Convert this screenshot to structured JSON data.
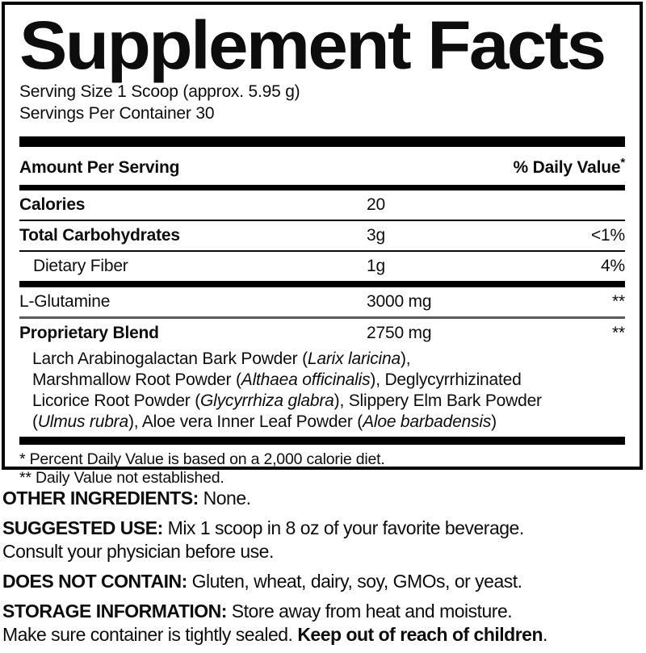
{
  "colors": {
    "ink": "#0d0d0d",
    "paper": "#ffffff",
    "divider_soft": "#5a5a5a"
  },
  "panel": {
    "title": "Supplement Facts",
    "serving_lines": [
      "Serving Size 1 Scoop (approx. 5.95 g)",
      "Servings Per Container 30"
    ],
    "columns": {
      "amount_header": "Amount Per Serving",
      "dv_header_text": "% Daily Value",
      "dv_header_star": "*"
    },
    "rows": [
      {
        "name": "Calories",
        "amount": "20",
        "dv": ""
      },
      {
        "name": "Total Carbohydrates",
        "amount": "3g",
        "dv": "<1%"
      },
      {
        "name": "Dietary Fiber",
        "amount": "1g",
        "dv": "4%"
      },
      {
        "name": "L-Glutamine",
        "amount": "3000 mg",
        "dv": "**"
      },
      {
        "name": "Proprietary Blend",
        "amount": "2750 mg",
        "dv": "**"
      }
    ],
    "blend_lines": [
      [
        {
          "t": "Larch Arabinogalactan Bark Powder ("
        },
        {
          "t": "Larix laricina",
          "i": true
        },
        {
          "t": "),"
        }
      ],
      [
        {
          "t": "Marshmallow Root Powder ("
        },
        {
          "t": "Althaea officinalis",
          "i": true
        },
        {
          "t": "), Deglycyrrhizinated"
        }
      ],
      [
        {
          "t": "Licorice Root Powder ("
        },
        {
          "t": "Glycyrrhiza glabra",
          "i": true
        },
        {
          "t": "), Slippery Elm Bark Powder"
        }
      ],
      [
        {
          "t": "("
        },
        {
          "t": "Ulmus rubra",
          "i": true
        },
        {
          "t": "), Aloe vera Inner Leaf Powder ("
        },
        {
          "t": "Aloe barbadensis",
          "i": true
        },
        {
          "t": ")"
        }
      ]
    ],
    "footnotes": [
      "* Percent Daily Value is based on a 2,000 calorie diet.",
      "** Daily Value not established."
    ]
  },
  "sections": [
    {
      "id": "other-ingredients",
      "lines": [
        [
          {
            "t": "OTHER INGREDIENTS:",
            "h": true
          },
          {
            "t": " None."
          }
        ]
      ]
    },
    {
      "id": "suggested-use",
      "lines": [
        [
          {
            "t": "SUGGESTED USE:",
            "h": true
          },
          {
            "t": " Mix 1 scoop in 8 oz of your favorite beverage."
          }
        ],
        [
          {
            "t": "Consult your physician before use."
          }
        ]
      ]
    },
    {
      "id": "does-not-contain",
      "lines": [
        [
          {
            "t": "DOES NOT CONTAIN:",
            "h": true
          },
          {
            "t": " Gluten, wheat, dairy, soy, GMOs, or yeast."
          }
        ]
      ]
    },
    {
      "id": "storage-information",
      "lines": [
        [
          {
            "t": "STORAGE INFORMATION:",
            "h": true
          },
          {
            "t": " Store away from heat and moisture."
          }
        ],
        [
          {
            "t": "Make sure container is tightly sealed. "
          },
          {
            "t": "Keep out of reach of children",
            "b": true
          },
          {
            "t": "."
          }
        ]
      ]
    }
  ]
}
